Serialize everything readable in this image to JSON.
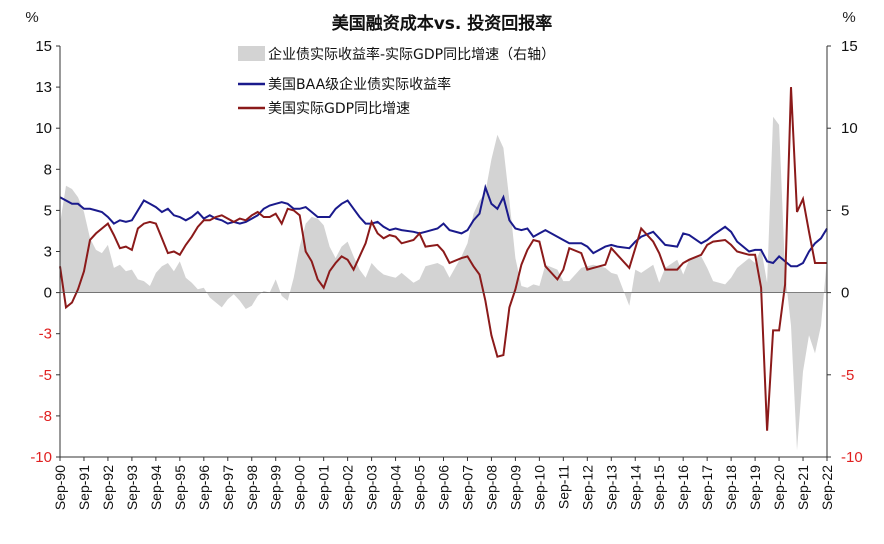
{
  "chart_data": {
    "type": "line",
    "title": "美国融资成本vs. 投资回报率",
    "left_axis_unit": "%",
    "right_axis_unit": "%",
    "left_ylim": [
      -10,
      15
    ],
    "right_ylim": [
      -10,
      15
    ],
    "left_ticks": [
      "15",
      "13",
      "10",
      "8",
      "5",
      "3",
      "0",
      "-3",
      "-5",
      "-8",
      "-10"
    ],
    "right_ticks": [
      "15",
      "10",
      "5",
      "0",
      "-5",
      "-10"
    ],
    "left_tick_values": [
      15,
      12.5,
      10,
      7.5,
      5,
      2.5,
      0,
      -2.5,
      -5,
      -7.5,
      -10
    ],
    "right_tick_values": [
      15,
      10,
      5,
      0,
      -5,
      -10
    ],
    "x_tick_labels": [
      "Sep-90",
      "Sep-91",
      "Sep-92",
      "Sep-93",
      "Sep-94",
      "Sep-95",
      "Sep-96",
      "Sep-97",
      "Sep-98",
      "Sep-99",
      "Sep-00",
      "Sep-01",
      "Sep-02",
      "Sep-03",
      "Sep-04",
      "Sep-05",
      "Sep-06",
      "Sep-07",
      "Sep-08",
      "Sep-09",
      "Sep-10",
      "Sep-11",
      "Sep-12",
      "Sep-13",
      "Sep-14",
      "Sep-15",
      "Sep-16",
      "Sep-17",
      "Sep-18",
      "Sep-19",
      "Sep-20",
      "Sep-21",
      "Sep-22"
    ],
    "legend_placement": "top-center",
    "grid": false,
    "colors": {
      "spread_area": "#d3d3d3",
      "baa_line": "#1a1a8c",
      "gdp_line": "#8b1a1a",
      "negative_tick": "#e02020"
    },
    "series": [
      {
        "name": "企业债实际收益率-实际GDP同比增速（右轴）",
        "type": "area",
        "axis": "right",
        "x": [
          1990.75,
          1991.0,
          1991.25,
          1991.5,
          1991.75,
          1992.0,
          1992.25,
          1992.5,
          1992.75,
          1993.0,
          1993.25,
          1993.5,
          1993.75,
          1994.0,
          1994.25,
          1994.5,
          1994.75,
          1995.0,
          1995.25,
          1995.5,
          1995.75,
          1996.0,
          1996.25,
          1996.5,
          1996.75,
          1997.0,
          1997.25,
          1997.5,
          1997.75,
          1998.0,
          1998.25,
          1998.5,
          1998.75,
          1999.0,
          1999.25,
          1999.5,
          1999.75,
          2000.0,
          2000.25,
          2000.5,
          2000.75,
          2001.0,
          2001.25,
          2001.5,
          2001.75,
          2002.0,
          2002.25,
          2002.5,
          2002.75,
          2003.0,
          2003.25,
          2003.5,
          2003.75,
          2004.0,
          2004.25,
          2004.5,
          2004.75,
          2005.0,
          2005.5,
          2005.75,
          2006.0,
          2006.5,
          2006.75,
          2007.0,
          2007.5,
          2007.75,
          2008.0,
          2008.25,
          2008.5,
          2008.75,
          2009.0,
          2009.25,
          2009.5,
          2009.75,
          2010.0,
          2010.25,
          2010.5,
          2010.75,
          2011.0,
          2011.5,
          2011.75,
          2012.0,
          2012.5,
          2012.75,
          2013.0,
          2013.5,
          2013.75,
          2014.0,
          2014.5,
          2014.75,
          2015.0,
          2015.5,
          2015.75,
          2016.0,
          2016.5,
          2016.75,
          2017.0,
          2017.5,
          2017.75,
          2018.0,
          2018.5,
          2018.75,
          2019.0,
          2019.5,
          2019.75,
          2020.0,
          2020.25,
          2020.5,
          2020.75,
          2021.0,
          2021.25,
          2021.5,
          2021.75,
          2022.0,
          2022.25,
          2022.5,
          2022.75
        ],
        "values": [
          4.2,
          6.5,
          6.3,
          5.8,
          4.9,
          3.3,
          2.6,
          2.4,
          2.9,
          1.5,
          1.7,
          1.3,
          1.4,
          0.8,
          0.7,
          0.4,
          1.2,
          1.6,
          1.8,
          1.3,
          1.9,
          0.9,
          0.6,
          0.2,
          0.3,
          -0.3,
          -0.6,
          -0.9,
          -0.4,
          -0.1,
          -0.5,
          -1.0,
          -0.8,
          -0.2,
          0.1,
          0.0,
          0.8,
          -0.2,
          -0.5,
          0.9,
          2.8,
          4.2,
          4.6,
          4.5,
          4.1,
          2.8,
          2.1,
          2.8,
          3.1,
          2.2,
          1.4,
          0.9,
          1.8,
          1.4,
          1.1,
          1.0,
          0.9,
          1.2,
          0.6,
          0.8,
          1.6,
          1.8,
          1.6,
          0.9,
          2.2,
          3.0,
          4.8,
          5.6,
          6.1,
          8.1,
          9.6,
          8.8,
          5.6,
          2.1,
          0.4,
          0.3,
          0.5,
          0.4,
          1.7,
          1.4,
          0.7,
          0.7,
          1.5,
          1.6,
          1.7,
          1.5,
          1.2,
          1.1,
          -0.8,
          1.4,
          1.2,
          1.7,
          0.6,
          1.5,
          2.0,
          1.1,
          2.0,
          2.2,
          1.5,
          0.7,
          0.5,
          0.9,
          1.5,
          2.1,
          1.8,
          2.7,
          0.6,
          10.7,
          10.2,
          1.2,
          -2.0,
          -9.6,
          -4.8,
          -2.6,
          -3.7,
          -2.0,
          2.1
        ]
      },
      {
        "name": "美国BAA级企业债实际收益率",
        "type": "line",
        "axis": "left",
        "x": [
          1990.75,
          1991.0,
          1991.25,
          1991.5,
          1991.75,
          1992.0,
          1992.25,
          1992.5,
          1992.75,
          1993.0,
          1993.25,
          1993.5,
          1993.75,
          1994.0,
          1994.25,
          1994.5,
          1994.75,
          1995.0,
          1995.25,
          1995.5,
          1995.75,
          1996.0,
          1996.25,
          1996.5,
          1996.75,
          1997.0,
          1997.25,
          1997.5,
          1997.75,
          1998.0,
          1998.25,
          1998.5,
          1998.75,
          1999.0,
          1999.25,
          1999.5,
          1999.75,
          2000.0,
          2000.25,
          2000.5,
          2000.75,
          2001.0,
          2001.25,
          2001.5,
          2001.75,
          2002.0,
          2002.25,
          2002.5,
          2002.75,
          2003.0,
          2003.25,
          2003.5,
          2003.75,
          2004.0,
          2004.25,
          2004.5,
          2004.75,
          2005.0,
          2005.5,
          2005.75,
          2006.0,
          2006.5,
          2006.75,
          2007.0,
          2007.5,
          2007.75,
          2008.0,
          2008.25,
          2008.5,
          2008.75,
          2009.0,
          2009.25,
          2009.5,
          2009.75,
          2010.0,
          2010.25,
          2010.5,
          2010.75,
          2011.0,
          2011.5,
          2011.75,
          2012.0,
          2012.5,
          2012.75,
          2013.0,
          2013.5,
          2013.75,
          2014.0,
          2014.5,
          2014.75,
          2015.0,
          2015.5,
          2015.75,
          2016.0,
          2016.5,
          2016.75,
          2017.0,
          2017.5,
          2017.75,
          2018.0,
          2018.5,
          2018.75,
          2019.0,
          2019.5,
          2019.75,
          2020.0,
          2020.25,
          2020.5,
          2020.75,
          2021.0,
          2021.25,
          2021.5,
          2021.75,
          2022.0,
          2022.25,
          2022.5,
          2022.75
        ],
        "values": [
          5.8,
          5.6,
          5.4,
          5.4,
          5.1,
          5.1,
          5.0,
          4.9,
          4.6,
          4.2,
          4.4,
          4.3,
          4.4,
          5.0,
          5.6,
          5.4,
          5.2,
          4.9,
          5.1,
          4.7,
          4.6,
          4.4,
          4.6,
          4.9,
          4.5,
          4.7,
          4.5,
          4.4,
          4.2,
          4.3,
          4.2,
          4.3,
          4.5,
          4.7,
          5.1,
          5.3,
          5.4,
          5.5,
          5.4,
          5.1,
          5.1,
          5.2,
          4.9,
          4.6,
          4.6,
          4.6,
          5.1,
          5.4,
          5.6,
          5.1,
          4.6,
          4.2,
          4.2,
          4.3,
          4.0,
          3.8,
          3.9,
          3.8,
          3.7,
          3.6,
          3.7,
          3.9,
          4.2,
          3.8,
          3.6,
          3.8,
          4.4,
          4.8,
          6.4,
          5.4,
          5.1,
          5.8,
          4.4,
          3.9,
          3.8,
          3.9,
          3.4,
          3.6,
          3.8,
          3.4,
          3.2,
          3.0,
          3.0,
          2.8,
          2.4,
          2.8,
          2.9,
          2.8,
          2.7,
          3.1,
          3.4,
          3.7,
          3.3,
          2.9,
          2.8,
          3.6,
          3.5,
          3.0,
          3.2,
          3.5,
          4.0,
          3.7,
          3.1,
          2.5,
          2.6,
          2.6,
          1.9,
          1.8,
          2.2,
          1.9,
          1.6,
          1.6,
          1.8,
          2.5,
          3.0,
          3.3,
          3.9
        ]
      },
      {
        "name": "美国实际GDP同比增速",
        "type": "line",
        "axis": "left",
        "x": [
          1990.75,
          1991.0,
          1991.25,
          1991.5,
          1991.75,
          1992.0,
          1992.25,
          1992.5,
          1992.75,
          1993.0,
          1993.25,
          1993.5,
          1993.75,
          1994.0,
          1994.25,
          1994.5,
          1994.75,
          1995.0,
          1995.25,
          1995.5,
          1995.75,
          1996.0,
          1996.25,
          1996.5,
          1996.75,
          1997.0,
          1997.25,
          1997.5,
          1997.75,
          1998.0,
          1998.25,
          1998.5,
          1998.75,
          1999.0,
          1999.25,
          1999.5,
          1999.75,
          2000.0,
          2000.25,
          2000.5,
          2000.75,
          2001.0,
          2001.25,
          2001.5,
          2001.75,
          2002.0,
          2002.25,
          2002.5,
          2002.75,
          2003.0,
          2003.25,
          2003.5,
          2003.75,
          2004.0,
          2004.25,
          2004.5,
          2004.75,
          2005.0,
          2005.5,
          2005.75,
          2006.0,
          2006.5,
          2006.75,
          2007.0,
          2007.5,
          2007.75,
          2008.0,
          2008.25,
          2008.5,
          2008.75,
          2009.0,
          2009.25,
          2009.5,
          2009.75,
          2010.0,
          2010.25,
          2010.5,
          2010.75,
          2011.0,
          2011.5,
          2011.75,
          2012.0,
          2012.5,
          2012.75,
          2013.0,
          2013.5,
          2013.75,
          2014.0,
          2014.5,
          2014.75,
          2015.0,
          2015.5,
          2015.75,
          2016.0,
          2016.5,
          2016.75,
          2017.0,
          2017.5,
          2017.75,
          2018.0,
          2018.5,
          2018.75,
          2019.0,
          2019.5,
          2019.75,
          2020.0,
          2020.25,
          2020.5,
          2020.75,
          2021.0,
          2021.25,
          2021.5,
          2021.75,
          2022.0,
          2022.25,
          2022.5,
          2022.75
        ],
        "values": [
          1.6,
          -0.9,
          -0.6,
          0.2,
          1.3,
          3.2,
          3.6,
          3.9,
          4.2,
          3.5,
          2.7,
          2.8,
          2.6,
          3.9,
          4.2,
          4.3,
          4.2,
          3.3,
          2.4,
          2.5,
          2.3,
          2.9,
          3.4,
          4.0,
          4.4,
          4.4,
          4.6,
          4.7,
          4.5,
          4.3,
          4.5,
          4.4,
          4.7,
          4.9,
          4.6,
          4.6,
          4.8,
          4.2,
          5.1,
          5.0,
          4.7,
          2.5,
          1.9,
          0.8,
          0.3,
          1.3,
          1.8,
          2.2,
          2.0,
          1.4,
          2.2,
          3.0,
          4.3,
          3.6,
          3.3,
          3.5,
          3.4,
          3.0,
          3.2,
          3.6,
          2.8,
          2.9,
          2.5,
          1.8,
          2.1,
          2.2,
          1.6,
          1.1,
          -0.5,
          -2.6,
          -3.9,
          -3.8,
          -0.9,
          0.2,
          1.7,
          2.6,
          3.2,
          3.1,
          1.6,
          0.8,
          1.4,
          2.7,
          2.4,
          1.4,
          1.5,
          1.7,
          2.7,
          2.3,
          1.5,
          2.7,
          3.9,
          3.1,
          2.4,
          1.4,
          1.4,
          1.8,
          2.0,
          2.3,
          2.9,
          3.1,
          3.2,
          2.9,
          2.5,
          2.3,
          2.3,
          0.3,
          -8.4,
          -2.3,
          -2.3,
          0.5,
          12.5,
          4.9,
          5.7,
          3.7,
          1.8,
          1.8,
          1.8
        ]
      }
    ]
  }
}
